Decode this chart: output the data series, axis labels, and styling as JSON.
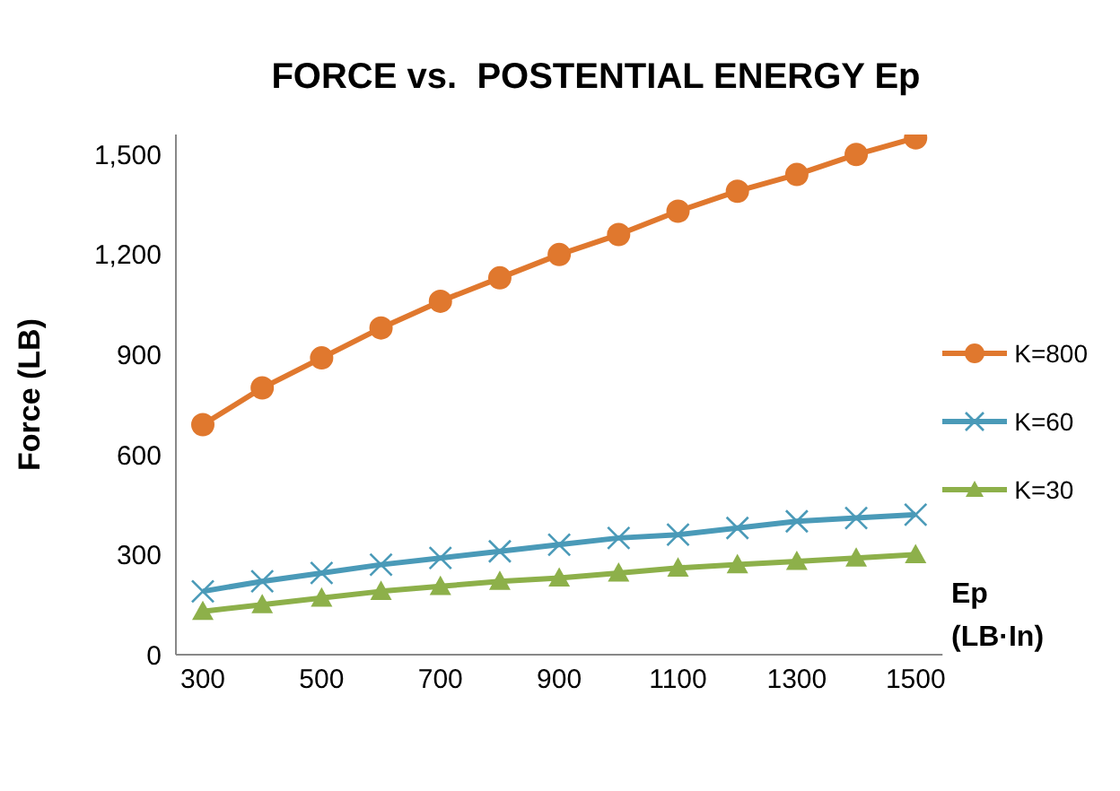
{
  "chart_data": {
    "type": "line",
    "title": "FORCE vs.  POSTENTIAL ENERGY Ep",
    "xlabel": "Ep (LB·In)",
    "ylabel": "Force (LB)",
    "categories": [
      "300",
      null,
      "500",
      null,
      "700",
      null,
      "900",
      null,
      "1100",
      null,
      "1300",
      null,
      "1500"
    ],
    "series": [
      {
        "name": "K=800",
        "color": "#e0782e",
        "marker": "circle",
        "values": [
          690,
          800,
          890,
          980,
          1060,
          1130,
          1200,
          1260,
          1330,
          1390,
          1440,
          1500,
          1550
        ]
      },
      {
        "name": "K=60",
        "color": "#4a9ab8",
        "marker": "cross",
        "values": [
          190,
          220,
          245,
          270,
          290,
          310,
          330,
          350,
          360,
          380,
          400,
          410,
          420
        ]
      },
      {
        "name": "K=30",
        "color": "#8db04a",
        "marker": "triangle",
        "values": [
          130,
          150,
          170,
          190,
          205,
          220,
          230,
          245,
          260,
          270,
          280,
          290,
          300
        ]
      }
    ],
    "ylim": [
      0,
      1560
    ],
    "yticks": [
      0,
      300,
      600,
      900,
      {
        "value": 1200,
        "label": "1,200"
      },
      {
        "value": 1500,
        "label": "1,500"
      }
    ],
    "grid": false,
    "legend": "right"
  }
}
